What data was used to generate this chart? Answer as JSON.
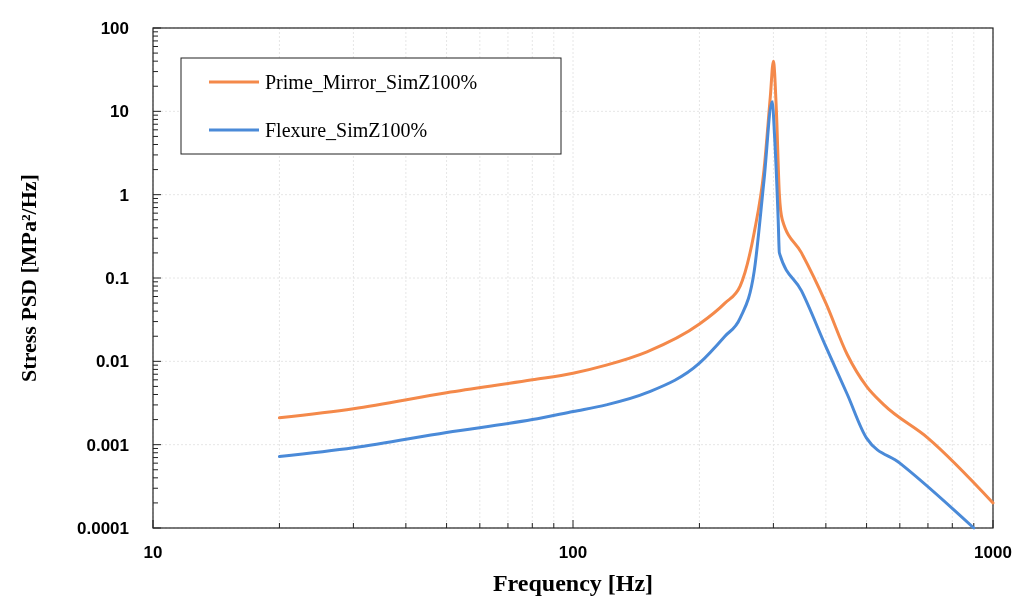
{
  "chart_data": {
    "type": "line",
    "xlabel": "Frequency [Hz]",
    "ylabel": "Stress PSD [MPa²/Hz]",
    "log": "xy",
    "grid": true,
    "legend": "top left",
    "xlim": [
      10,
      1000
    ],
    "xticks": [
      10,
      100,
      1000
    ],
    "ylim": [
      0.0001,
      100
    ],
    "yticks": [
      0.0001,
      0.001,
      0.01,
      0.1,
      1,
      10,
      100
    ],
    "series": [
      {
        "name": "Prime_Mirror_SimZ100%",
        "color": "#f4894a",
        "x": [
          20,
          30,
          50,
          80,
          100,
          120,
          150,
          200,
          230,
          250,
          270,
          285,
          295,
          300,
          305,
          310,
          315,
          350,
          400,
          450,
          500,
          550,
          700,
          1000
        ],
        "values": [
          0.0021,
          0.0027,
          0.0042,
          0.006,
          0.0072,
          0.009,
          0.013,
          0.028,
          0.05,
          0.08,
          0.35,
          2,
          15,
          40,
          10,
          1,
          0.5,
          0.2,
          0.05,
          0.012,
          0.005,
          0.003,
          0.0012,
          0.0002
        ]
      },
      {
        "name": "Flexure_SimZ100%",
        "color": "#4a8ad8",
        "x": [
          20,
          30,
          50,
          80,
          100,
          120,
          150,
          200,
          230,
          250,
          270,
          285,
          298,
          302,
          308,
          310,
          350,
          400,
          450,
          500,
          600,
          900
        ],
        "values": [
          0.00072,
          0.00092,
          0.0014,
          0.002,
          0.0025,
          0.003,
          0.0042,
          0.0095,
          0.02,
          0.033,
          0.12,
          1.5,
          13,
          5,
          0.5,
          0.2,
          0.07,
          0.015,
          0.004,
          0.0012,
          0.0006,
          0.0001
        ]
      }
    ]
  }
}
